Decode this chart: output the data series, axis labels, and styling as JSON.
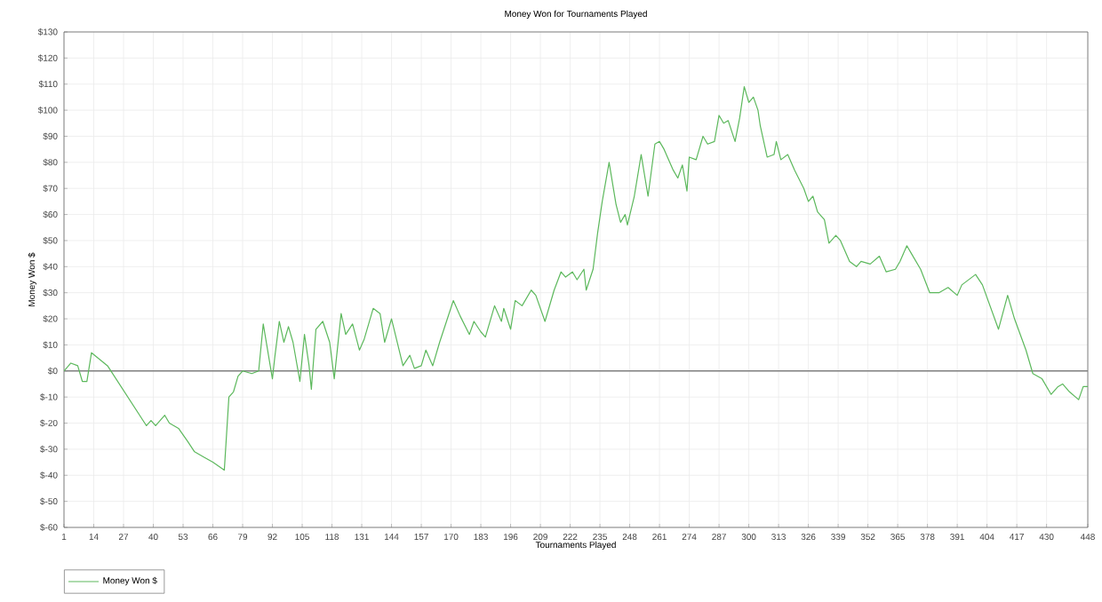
{
  "chart_data": {
    "type": "line",
    "title": "Money Won for Tournaments Played",
    "xlabel": "Tournaments Played",
    "ylabel": "Money Won $",
    "x": [
      1,
      4,
      7,
      9,
      11,
      13,
      20,
      37,
      39,
      41,
      42,
      45,
      47,
      51,
      55,
      58,
      62,
      66,
      71,
      73,
      75,
      77,
      79,
      83,
      86,
      88,
      92,
      93,
      95,
      97,
      99,
      101,
      104,
      106,
      108,
      109,
      111,
      114,
      117,
      119,
      122,
      124,
      127,
      130,
      132,
      136,
      139,
      141,
      144,
      149,
      152,
      154,
      157,
      159,
      162,
      165,
      168,
      171,
      174,
      178,
      180,
      183,
      185,
      189,
      192,
      193,
      196,
      198,
      201,
      205,
      207,
      211,
      215,
      218,
      220,
      223,
      225,
      228,
      229,
      232,
      234,
      236,
      239,
      242,
      244,
      246,
      247,
      250,
      253,
      256,
      259,
      261,
      263,
      267,
      269,
      271,
      273,
      274,
      277,
      280,
      282,
      285,
      287,
      289,
      291,
      294,
      296,
      298,
      300,
      302,
      304,
      305,
      308,
      311,
      312,
      314,
      317,
      320,
      324,
      326,
      328,
      330,
      333,
      335,
      338,
      340,
      344,
      347,
      349,
      353,
      357,
      360,
      364,
      366,
      369,
      371,
      375,
      379,
      383,
      387,
      391,
      393,
      399,
      402,
      409,
      413,
      416,
      421,
      424,
      428,
      432,
      435,
      437,
      440,
      444,
      446,
      448
    ],
    "series": [
      {
        "name": "Money Won $",
        "color": "#5cb85c",
        "values": [
          0,
          3,
          2,
          -4,
          -4,
          7,
          2,
          -21,
          -19,
          -21,
          -20,
          -17,
          -20,
          -22,
          -27,
          -31,
          -33,
          -35,
          -38,
          -10,
          -8,
          -2,
          0,
          -1,
          0,
          18,
          -3,
          5,
          19,
          11,
          17,
          11,
          -4,
          14,
          2,
          -7,
          16,
          19,
          11,
          -3,
          22,
          14,
          18,
          8,
          12,
          24,
          22,
          11,
          20,
          2,
          6,
          1,
          2,
          8,
          2,
          11,
          19,
          27,
          21,
          14,
          19,
          15,
          13,
          25,
          19,
          24,
          16,
          27,
          25,
          31,
          29,
          19,
          31,
          38,
          36,
          38,
          35,
          39,
          31,
          39,
          53,
          65,
          80,
          64,
          57,
          60,
          56,
          67,
          83,
          67,
          87,
          88,
          85,
          77,
          74,
          79,
          69,
          82,
          81,
          90,
          87,
          88,
          98,
          95,
          96,
          88,
          97,
          109,
          103,
          105,
          100,
          94,
          82,
          83,
          88,
          81,
          83,
          77,
          70,
          65,
          67,
          61,
          58,
          49,
          52,
          50,
          42,
          40,
          42,
          41,
          44,
          38,
          39,
          42,
          48,
          45,
          39,
          30,
          30,
          32,
          29,
          33,
          37,
          33,
          16,
          29,
          20,
          8,
          -1,
          -3,
          -9,
          -6,
          -5,
          -8,
          -11,
          -6,
          -6
        ]
      }
    ],
    "xlim": [
      1,
      448
    ],
    "ylim": [
      -60,
      130
    ],
    "xticks": [
      1,
      14,
      27,
      40,
      53,
      66,
      79,
      92,
      105,
      118,
      131,
      144,
      157,
      170,
      183,
      196,
      209,
      222,
      235,
      248,
      261,
      274,
      287,
      300,
      313,
      326,
      339,
      352,
      365,
      378,
      391,
      404,
      417,
      430,
      448
    ],
    "yticks": [
      {
        "value": -60,
        "label": "$-60"
      },
      {
        "value": -50,
        "label": "$-50"
      },
      {
        "value": -40,
        "label": "$-40"
      },
      {
        "value": -30,
        "label": "$-30"
      },
      {
        "value": -20,
        "label": "$-20"
      },
      {
        "value": -10,
        "label": "$-10"
      },
      {
        "value": 0,
        "label": "$0"
      },
      {
        "value": 10,
        "label": "$10"
      },
      {
        "value": 20,
        "label": "$20"
      },
      {
        "value": 30,
        "label": "$30"
      },
      {
        "value": 40,
        "label": "$40"
      },
      {
        "value": 50,
        "label": "$50"
      },
      {
        "value": 60,
        "label": "$60"
      },
      {
        "value": 70,
        "label": "$70"
      },
      {
        "value": 80,
        "label": "$80"
      },
      {
        "value": 90,
        "label": "$90"
      },
      {
        "value": 100,
        "label": "$100"
      },
      {
        "value": 110,
        "label": "$110"
      },
      {
        "value": 120,
        "label": "$120"
      },
      {
        "value": 130,
        "label": "$130"
      }
    ],
    "ref_lines": [
      {
        "axis": "y",
        "value": 0,
        "color": "#808080"
      }
    ],
    "grid": true,
    "legend": "bottom left",
    "marker": "none",
    "line_style": "solid"
  }
}
